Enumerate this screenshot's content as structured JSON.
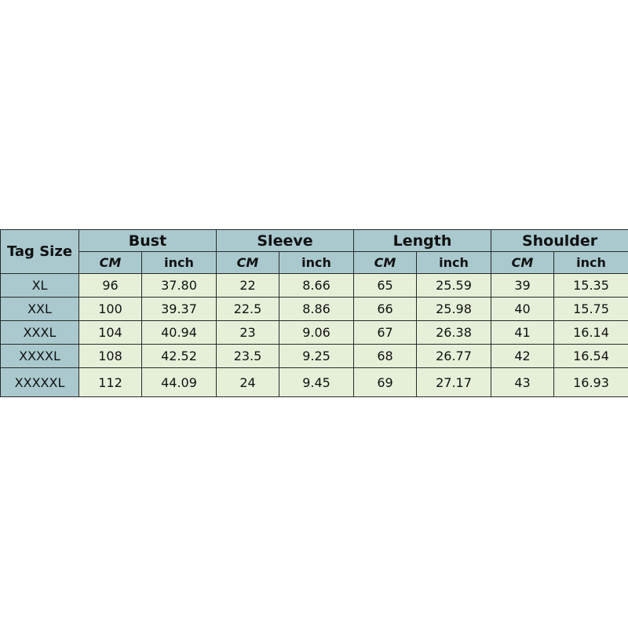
{
  "table": {
    "tag_header": "Tag Size",
    "groups": [
      "Bust",
      "Sleeve",
      "Length",
      "Shoulder"
    ],
    "units": [
      "CM",
      "inch"
    ],
    "rows": [
      [
        "XL",
        "96",
        "37.80",
        "22",
        "8.66",
        "65",
        "25.59",
        "39",
        "15.35"
      ],
      [
        "XXL",
        "100",
        "39.37",
        "22.5",
        "8.86",
        "66",
        "25.98",
        "40",
        "15.75"
      ],
      [
        "XXXL",
        "104",
        "40.94",
        "23",
        "9.06",
        "67",
        "26.38",
        "41",
        "16.14"
      ],
      [
        "XXXXL",
        "108",
        "42.52",
        "23.5",
        "9.25",
        "68",
        "26.77",
        "42",
        "16.54"
      ],
      [
        "XXXXXL",
        "112",
        "44.09",
        "24",
        "9.45",
        "69",
        "27.17",
        "43",
        "16.93"
      ]
    ]
  },
  "colors": {
    "header_bg": "#a9c9ce",
    "cell_bg": "#e6f0d9"
  }
}
